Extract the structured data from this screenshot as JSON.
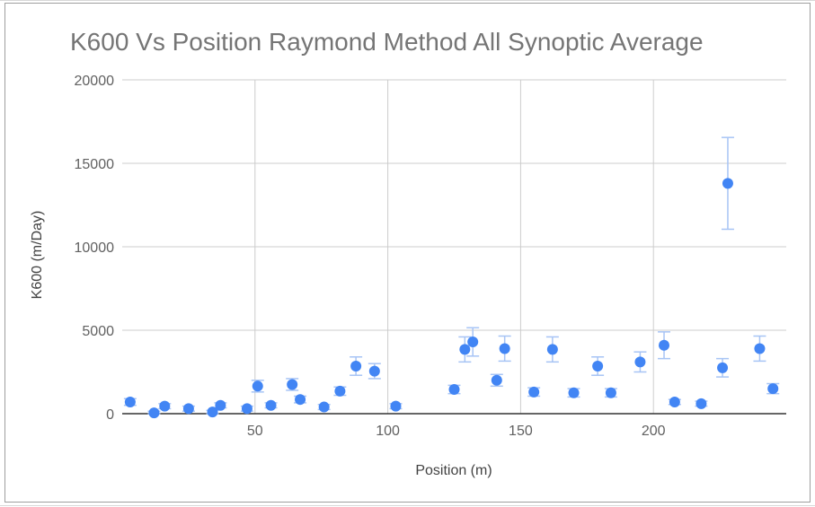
{
  "chart_data": {
    "type": "scatter",
    "title": "K600 Vs Position Raymond Method All Synoptic Average",
    "xlabel": "Position (m)",
    "ylabel": "K600 (m/Day)",
    "xlim": [
      0,
      250
    ],
    "ylim": [
      0,
      20000
    ],
    "xticks": [
      50,
      100,
      150,
      200
    ],
    "yticks": [
      0,
      5000,
      10000,
      15000,
      20000
    ],
    "xtick_labels": [
      "50",
      "100",
      "150",
      "200"
    ],
    "ytick_labels": [
      "0",
      "5000",
      "10000",
      "15000",
      "20000"
    ],
    "grid": true,
    "colors": {
      "marker": "#4285f4",
      "error_bar": "#a7c4f5",
      "grid": "#cccccc",
      "axis": "#333333"
    },
    "series": [
      {
        "points": [
          {
            "x": 3,
            "y": 700,
            "err": 200
          },
          {
            "x": 12,
            "y": 50,
            "err": 100
          },
          {
            "x": 16,
            "y": 450,
            "err": 150
          },
          {
            "x": 25,
            "y": 300,
            "err": 150
          },
          {
            "x": 34,
            "y": 100,
            "err": 100
          },
          {
            "x": 37,
            "y": 500,
            "err": 150
          },
          {
            "x": 47,
            "y": 300,
            "err": 150
          },
          {
            "x": 51,
            "y": 1650,
            "err": 350
          },
          {
            "x": 56,
            "y": 500,
            "err": 150
          },
          {
            "x": 64,
            "y": 1750,
            "err": 350
          },
          {
            "x": 67,
            "y": 850,
            "err": 200
          },
          {
            "x": 76,
            "y": 400,
            "err": 150
          },
          {
            "x": 82,
            "y": 1350,
            "err": 250
          },
          {
            "x": 88,
            "y": 2850,
            "err": 550
          },
          {
            "x": 95,
            "y": 2550,
            "err": 450
          },
          {
            "x": 103,
            "y": 450,
            "err": 150
          },
          {
            "x": 125,
            "y": 1450,
            "err": 250
          },
          {
            "x": 129,
            "y": 3850,
            "err": 750
          },
          {
            "x": 132,
            "y": 4300,
            "err": 850
          },
          {
            "x": 141,
            "y": 2000,
            "err": 350
          },
          {
            "x": 144,
            "y": 3900,
            "err": 750
          },
          {
            "x": 155,
            "y": 1300,
            "err": 250
          },
          {
            "x": 162,
            "y": 3850,
            "err": 750
          },
          {
            "x": 170,
            "y": 1250,
            "err": 250
          },
          {
            "x": 179,
            "y": 2850,
            "err": 550
          },
          {
            "x": 184,
            "y": 1250,
            "err": 250
          },
          {
            "x": 195,
            "y": 3100,
            "err": 600
          },
          {
            "x": 204,
            "y": 4100,
            "err": 800
          },
          {
            "x": 208,
            "y": 700,
            "err": 150
          },
          {
            "x": 218,
            "y": 600,
            "err": 150
          },
          {
            "x": 226,
            "y": 2750,
            "err": 550
          },
          {
            "x": 228,
            "y": 13800,
            "err": 2750
          },
          {
            "x": 240,
            "y": 3900,
            "err": 750
          },
          {
            "x": 245,
            "y": 1500,
            "err": 300
          }
        ]
      }
    ]
  }
}
